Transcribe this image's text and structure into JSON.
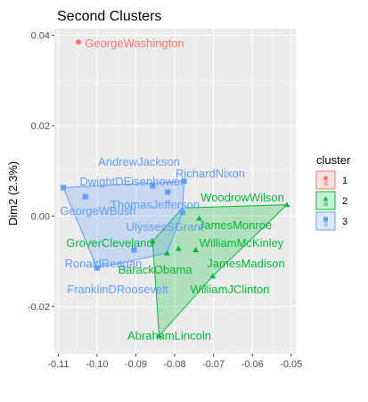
{
  "chart_data": {
    "type": "scatter",
    "title": "Second Clusters",
    "xlabel": "",
    "ylabel": "Dim2 (2.3%)",
    "xlim": [
      -0.111,
      -0.0488
    ],
    "ylim": [
      -0.0305,
      0.0415
    ],
    "x_ticks": [
      -0.11,
      -0.1,
      -0.09,
      -0.08,
      -0.07,
      -0.06,
      -0.05
    ],
    "x_tick_labels": [
      "-0.11",
      "-0.10",
      "-0.09",
      "-0.08",
      "-0.07",
      "-0.06",
      "-0.05"
    ],
    "y_ticks": [
      -0.02,
      0.0,
      0.02,
      0.04
    ],
    "y_tick_labels": [
      "-0.02",
      "0.00",
      "0.02",
      "0.04"
    ],
    "grid": true,
    "legend": {
      "title": "cluster",
      "placement": "right",
      "entries": [
        {
          "label": "1",
          "color": "#F8766D",
          "symbol": "circle"
        },
        {
          "label": "2",
          "color": "#00BA38",
          "symbol": "triangle"
        },
        {
          "label": "3",
          "color": "#619CFF",
          "symbol": "square"
        }
      ]
    },
    "series": [
      {
        "cluster": "1",
        "color": "#F8766D",
        "symbol": "circle",
        "points": [
          {
            "label": "GeorgeWashington",
            "x": -0.1048,
            "y": 0.0385
          }
        ],
        "hull": [
          [
            -0.1048,
            0.0385
          ]
        ]
      },
      {
        "cluster": "2",
        "color": "#00BA38",
        "symbol": "triangle",
        "points": [
          {
            "label": "WoodrowWilson",
            "x": -0.0511,
            "y": 0.0025
          },
          {
            "label": "JamesMonroe",
            "x": -0.0737,
            "y": -0.0005
          },
          {
            "label": "GroverCleveland",
            "x": -0.0857,
            "y": -0.0056
          },
          {
            "label": "WilliamMcKinley",
            "x": -0.079,
            "y": -0.0072
          },
          {
            "label": "JamesMadison",
            "x": -0.0746,
            "y": -0.0075
          },
          {
            "label": "BarackObama",
            "x": -0.082,
            "y": -0.0082
          },
          {
            "label": "WilliamJClinton",
            "x": -0.0702,
            "y": -0.0133
          },
          {
            "label": "AbrahamLincoln",
            "x": -0.084,
            "y": -0.0265
          }
        ],
        "hull": [
          [
            -0.0511,
            0.0025
          ],
          [
            -0.0702,
            -0.0133
          ],
          [
            -0.084,
            -0.0265
          ],
          [
            -0.0857,
            -0.0056
          ],
          [
            -0.078,
            0.0018
          ]
        ]
      },
      {
        "cluster": "3",
        "color": "#619CFF",
        "symbol": "square",
        "points": [
          {
            "label": "RichardNixon",
            "x": -0.0776,
            "y": 0.0077
          },
          {
            "label": "AndrewJackson",
            "x": -0.0857,
            "y": 0.0067
          },
          {
            "label": "DwightDEisenhower",
            "x": -0.1087,
            "y": 0.0063
          },
          {
            "label": "ThomasJefferson",
            "x": -0.0818,
            "y": 0.0053
          },
          {
            "label": "GeorgeWBush",
            "x": -0.103,
            "y": 0.0043
          },
          {
            "label": "UlyssesSGrant",
            "x": -0.078,
            "y": 0.0008
          },
          {
            "label": "RonaldReagan",
            "x": -0.0905,
            "y": -0.0075
          },
          {
            "label": "FranklinDRoosevelt",
            "x": -0.1,
            "y": -0.0115
          }
        ],
        "hull": [
          [
            -0.1087,
            0.0063
          ],
          [
            -0.0776,
            0.0077
          ],
          [
            -0.078,
            0.0008
          ],
          [
            -0.082,
            -0.0082
          ],
          [
            -0.1,
            -0.0115
          ]
        ]
      }
    ]
  }
}
